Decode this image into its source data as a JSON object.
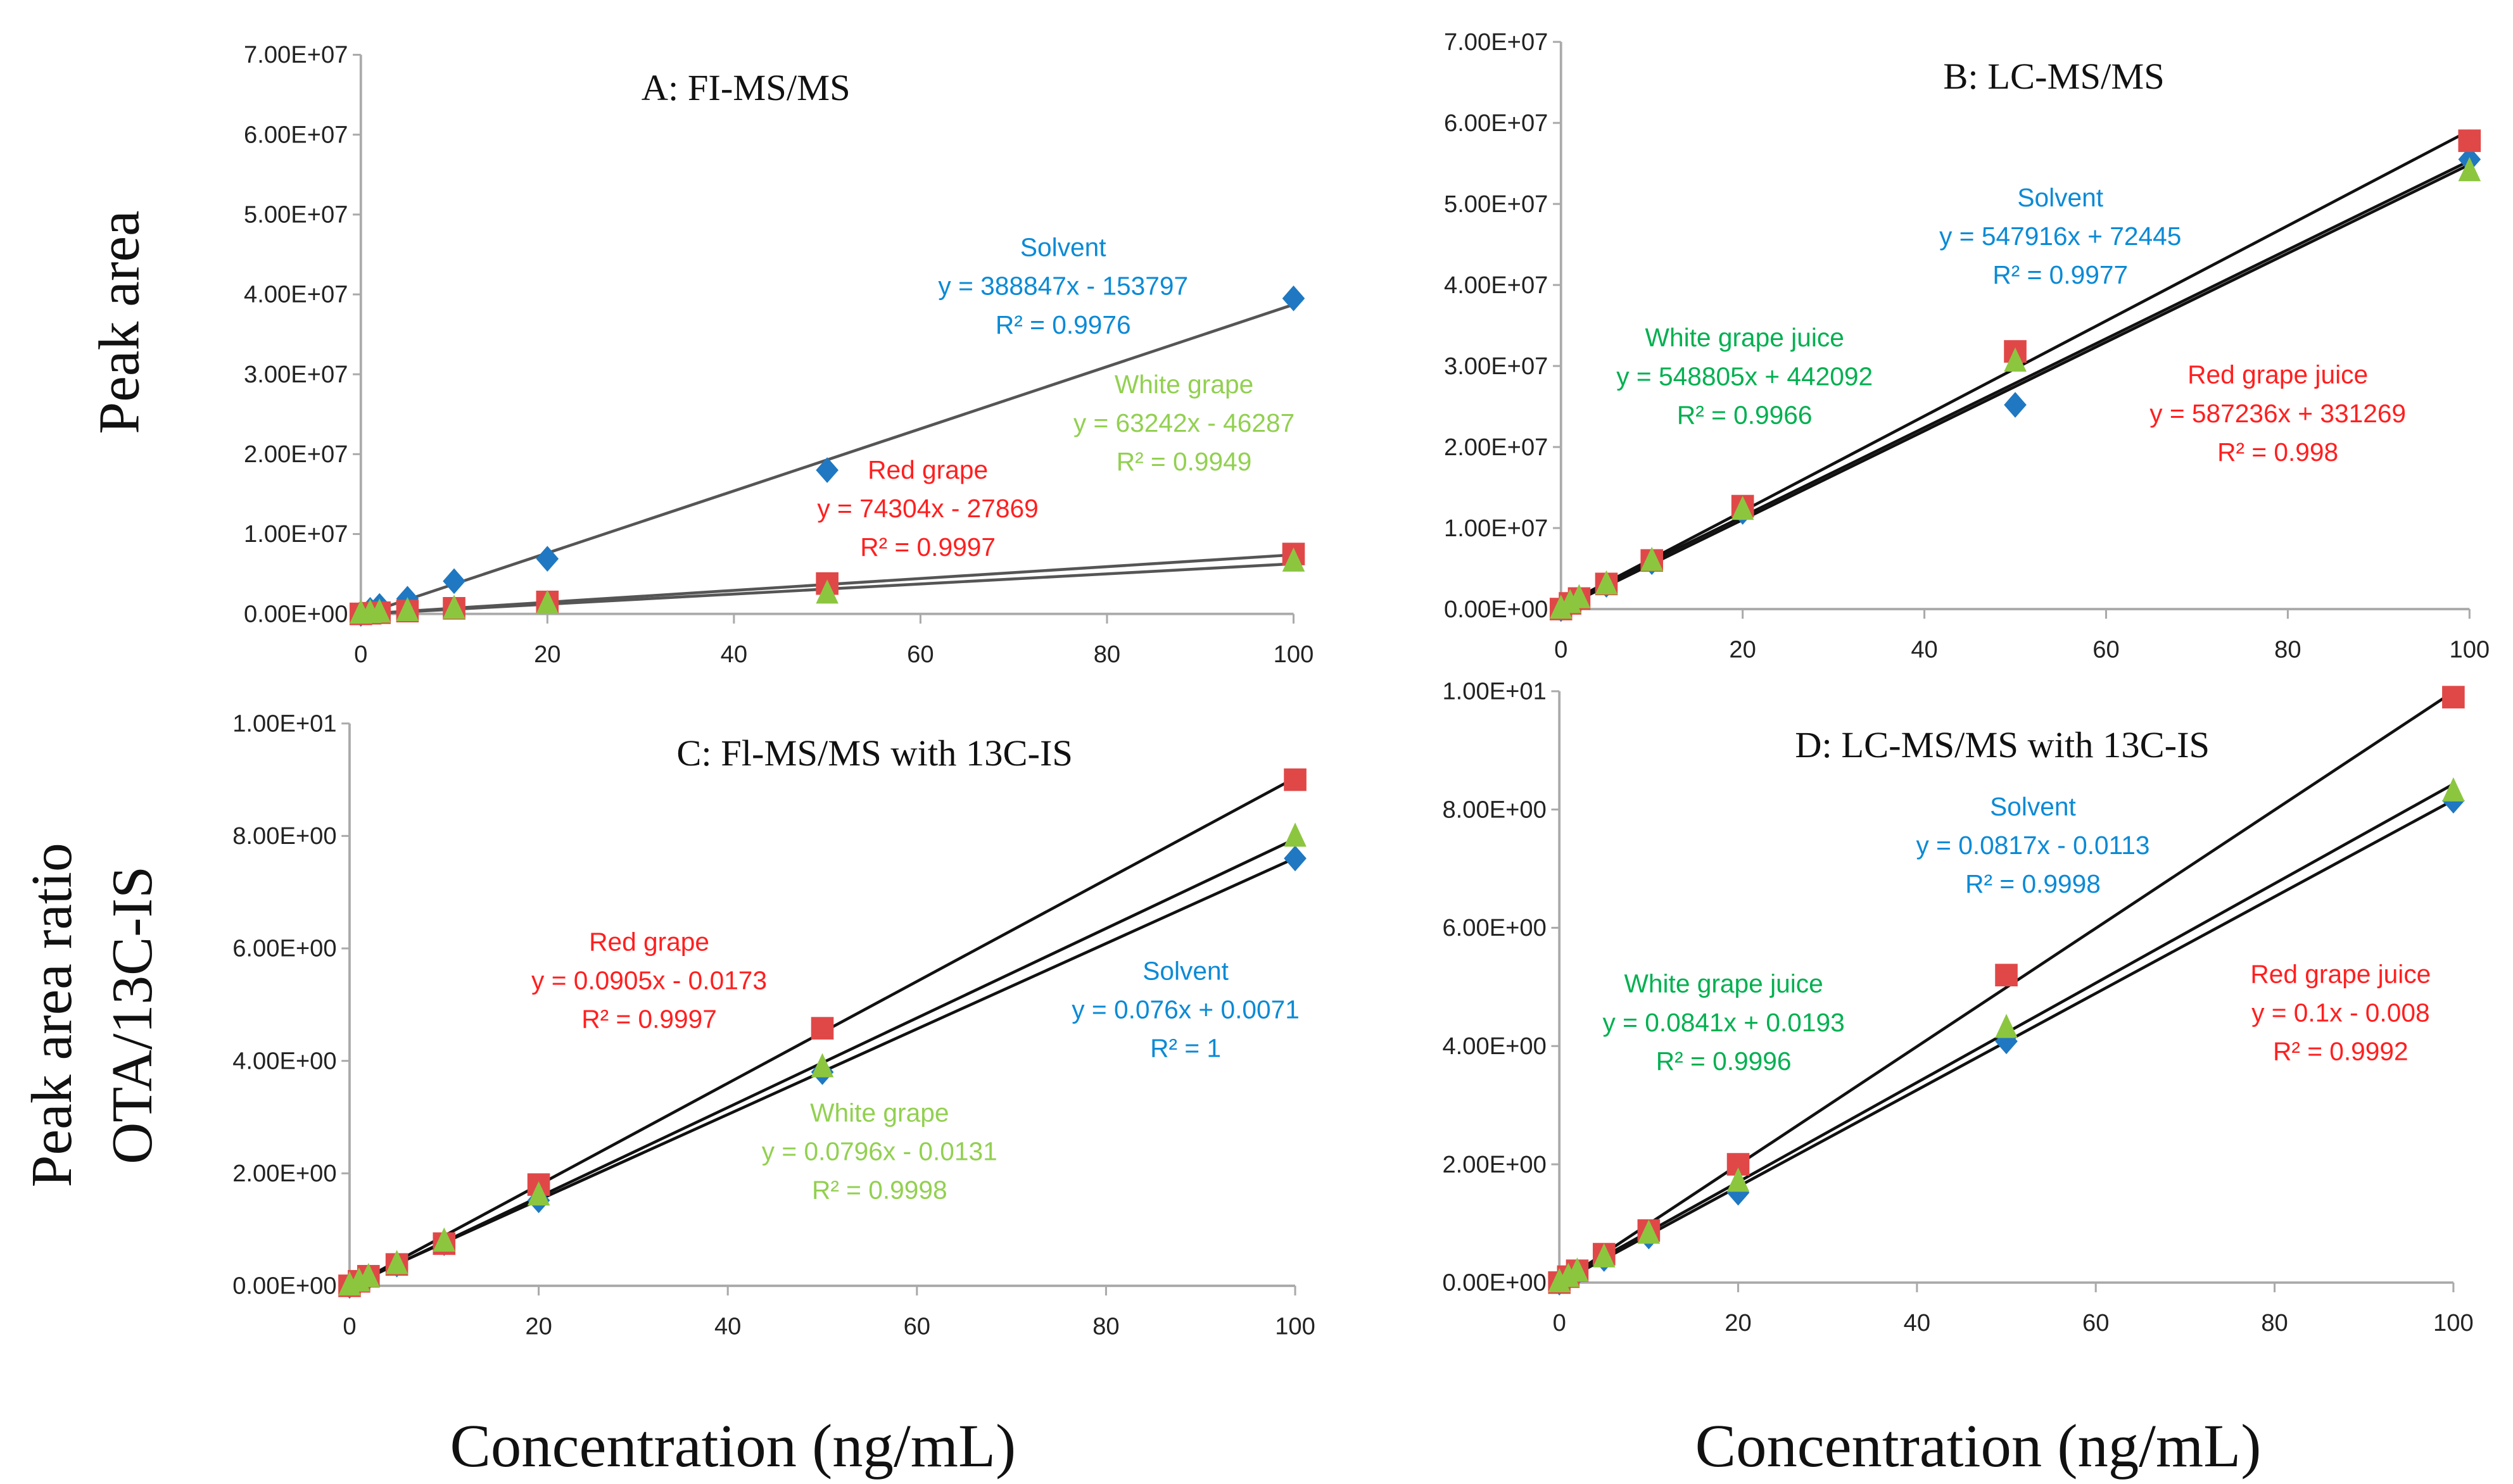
{
  "chart_data": [
    {
      "type": "scatter",
      "title": "A: FI-MS/MS",
      "ylabel": "Peak area",
      "xlabel": "",
      "xlim": [
        0,
        100
      ],
      "ylim": [
        0,
        70000000
      ],
      "x_ticks": [
        "0",
        "20",
        "40",
        "60",
        "80",
        "100"
      ],
      "y_ticks": [
        "0.00E+00",
        "1.00E+07",
        "2.00E+07",
        "3.00E+07",
        "4.00E+07",
        "5.00E+07",
        "6.00E+07",
        "7.00E+07"
      ],
      "x": [
        0,
        1,
        2,
        5,
        10,
        20,
        50,
        100
      ],
      "series": [
        {
          "name": "Solvent",
          "marker": "diamond",
          "color": "#1f78c1",
          "text_color": "#0a8ad6",
          "values": [
            0,
            500000,
            1000000,
            1900000,
            4100000,
            6900000,
            18000000,
            39500000
          ],
          "fit": {
            "slope": 388847,
            "intercept": -153797
          },
          "label": "Solvent",
          "equation": "y = 388847x - 153797",
          "r2": "R² = 0.9976"
        },
        {
          "name": "Red grape",
          "marker": "square",
          "color": "#e04848",
          "text_color": "#ff1f1f",
          "values": [
            0,
            80000,
            150000,
            350000,
            700000,
            1500000,
            3800000,
            7500000
          ],
          "fit": {
            "slope": 74304,
            "intercept": -27869
          },
          "label": "Red grape",
          "equation": "y = 74304x - 27869",
          "r2": "R² = 0.9997"
        },
        {
          "name": "White grape",
          "marker": "triangle",
          "color": "#8cc63f",
          "text_color": "#92d050",
          "values": [
            0,
            60000,
            120000,
            300000,
            600000,
            1200000,
            2500000,
            6500000
          ],
          "fit": {
            "slope": 63242,
            "intercept": -46287
          },
          "label": "White grape",
          "equation": "y = 63242x - 46287",
          "r2": "R² = 0.9949"
        }
      ]
    },
    {
      "type": "scatter",
      "title": "B: LC-MS/MS",
      "ylabel": "",
      "xlabel": "",
      "xlim": [
        0,
        100
      ],
      "ylim": [
        0,
        70000000
      ],
      "x_ticks": [
        "0",
        "20",
        "40",
        "60",
        "80",
        "100"
      ],
      "y_ticks": [
        "0.00E+00",
        "1.00E+07",
        "2.00E+07",
        "3.00E+07",
        "4.00E+07",
        "5.00E+07",
        "6.00E+07",
        "7.00E+07"
      ],
      "x": [
        0,
        1,
        2,
        5,
        10,
        20,
        50,
        100
      ],
      "series": [
        {
          "name": "Solvent",
          "marker": "diamond",
          "color": "#1f78c1",
          "text_color": "#0a8ad6",
          "values": [
            0,
            600000,
            1100000,
            3000000,
            5800000,
            12000000,
            25200000,
            55500000
          ],
          "fit": {
            "slope": 547916,
            "intercept": 72445
          },
          "label": "Solvent",
          "equation": "y = 547916x + 72445",
          "r2": "R² = 0.9977"
        },
        {
          "name": "White grape juice",
          "marker": "triangle",
          "color": "#8cc63f",
          "text_color": "#00b050",
          "values": [
            0,
            700000,
            1300000,
            3000000,
            5900000,
            12200000,
            30500000,
            54000000
          ],
          "fit": {
            "slope": 548805,
            "intercept": 442092
          },
          "label": "White grape juice",
          "equation": "y = 548805x + 442092",
          "r2": "R² = 0.9966"
        },
        {
          "name": "Red grape juice",
          "marker": "square",
          "color": "#e04848",
          "text_color": "#ff1f1f",
          "values": [
            0,
            700000,
            1300000,
            3100000,
            6000000,
            12700000,
            31800000,
            57800000
          ],
          "fit": {
            "slope": 587236,
            "intercept": 331269
          },
          "label": "Red grape juice",
          "equation": "y = 587236x + 331269",
          "r2": "R² = 0.998"
        }
      ]
    },
    {
      "type": "scatter",
      "title": "C: Fl-MS/MS with 13C-IS",
      "ylabel": "Peak area ratio OTA/13C-IS",
      "xlabel": "Concentration (ng/mL)",
      "xlim": [
        0,
        100
      ],
      "ylim": [
        0,
        10
      ],
      "x_ticks": [
        "0",
        "20",
        "40",
        "60",
        "80",
        "100"
      ],
      "y_ticks": [
        "0.00E+00",
        "2.00E+00",
        "4.00E+00",
        "6.00E+00",
        "8.00E+00",
        "1.00E+01"
      ],
      "x": [
        0,
        1,
        2,
        5,
        10,
        20,
        50,
        100
      ],
      "series": [
        {
          "name": "Red grape",
          "marker": "square",
          "color": "#e04848",
          "text_color": "#ff1f1f",
          "values": [
            0,
            0.08,
            0.17,
            0.38,
            0.75,
            1.8,
            4.58,
            9.0
          ],
          "fit": {
            "slope": 0.0905,
            "intercept": -0.0173
          },
          "label": "Red grape",
          "equation": "y = 0.0905x - 0.0173",
          "r2": "R² = 0.9997"
        },
        {
          "name": "Solvent",
          "marker": "diamond",
          "color": "#1f78c1",
          "text_color": "#0a8ad6",
          "values": [
            0,
            0.08,
            0.15,
            0.38,
            0.76,
            1.52,
            3.8,
            7.6
          ],
          "fit": {
            "slope": 0.076,
            "intercept": 0.0071
          },
          "label": "Solvent",
          "equation": "y = 0.076x + 0.0071",
          "r2": "R² = 1"
        },
        {
          "name": "White grape",
          "marker": "triangle",
          "color": "#8cc63f",
          "text_color": "#92d050",
          "values": [
            0,
            0.07,
            0.15,
            0.38,
            0.78,
            1.6,
            3.88,
            7.98
          ],
          "fit": {
            "slope": 0.0796,
            "intercept": -0.0131
          },
          "label": "White grape",
          "equation": "y = 0.0796x - 0.0131",
          "r2": "R² = 0.9998"
        }
      ]
    },
    {
      "type": "scatter",
      "title": "D: LC-MS/MS with 13C-IS",
      "ylabel": "",
      "xlabel": "Concentration (ng/mL)",
      "xlim": [
        0,
        100
      ],
      "ylim": [
        0,
        10
      ],
      "x_ticks": [
        "0",
        "20",
        "40",
        "60",
        "80",
        "100"
      ],
      "y_ticks": [
        "0.00E+00",
        "2.00E+00",
        "4.00E+00",
        "6.00E+00",
        "8.00E+00",
        "1.00E+01"
      ],
      "x": [
        0,
        1,
        2,
        5,
        10,
        20,
        50,
        100
      ],
      "series": [
        {
          "name": "Solvent",
          "marker": "diamond",
          "color": "#1f78c1",
          "text_color": "#0a8ad6",
          "values": [
            0,
            0.08,
            0.16,
            0.4,
            0.78,
            1.52,
            4.08,
            8.15
          ],
          "fit": {
            "slope": 0.0817,
            "intercept": -0.0113
          },
          "label": "Solvent",
          "equation": "y = 0.0817x - 0.0113",
          "r2": "R² = 0.9998"
        },
        {
          "name": "White grape juice",
          "marker": "triangle",
          "color": "#8cc63f",
          "text_color": "#00b050",
          "values": [
            0,
            0.09,
            0.18,
            0.42,
            0.82,
            1.7,
            4.3,
            8.3
          ],
          "fit": {
            "slope": 0.0841,
            "intercept": 0.0193
          },
          "label": "White grape juice",
          "equation": "y = 0.0841x + 0.0193",
          "r2": "R² = 0.9996"
        },
        {
          "name": "Red grape juice",
          "marker": "square",
          "color": "#e04848",
          "text_color": "#ff1f1f",
          "values": [
            0,
            0.1,
            0.2,
            0.48,
            0.88,
            2.0,
            5.2,
            9.9
          ],
          "fit": {
            "slope": 0.1,
            "intercept": -0.008
          },
          "label": "Red grape juice",
          "equation": "y = 0.1x - 0.008",
          "r2": "R² = 0.9992"
        }
      ]
    }
  ],
  "axis_titles": {
    "top_ylabel": "Peak area",
    "bottom_ylabel_line1": "Peak area ratio",
    "bottom_ylabel_line2": "OTA/13C-IS",
    "xlabel_left": "Concentration (ng/mL)",
    "xlabel_right": "Concentration (ng/mL)"
  }
}
